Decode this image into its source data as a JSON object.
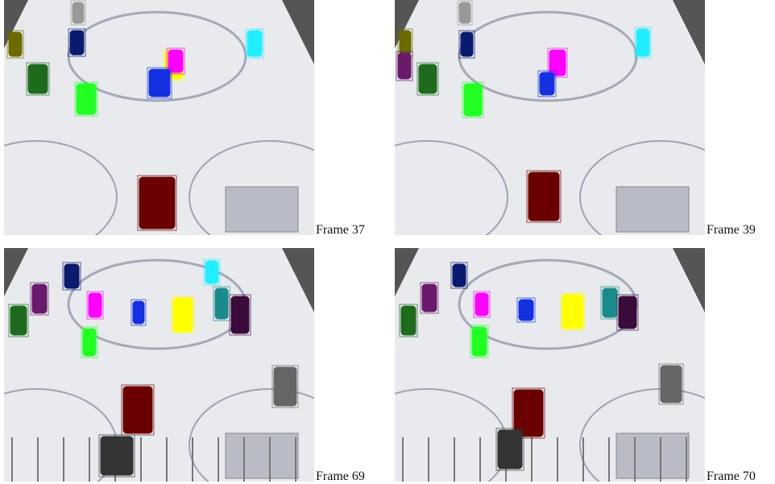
{
  "panels": [
    {
      "label": "Frame 37"
    },
    {
      "label": "Frame 39"
    },
    {
      "label": "Frame 69"
    },
    {
      "label": "Frame 70"
    }
  ]
}
